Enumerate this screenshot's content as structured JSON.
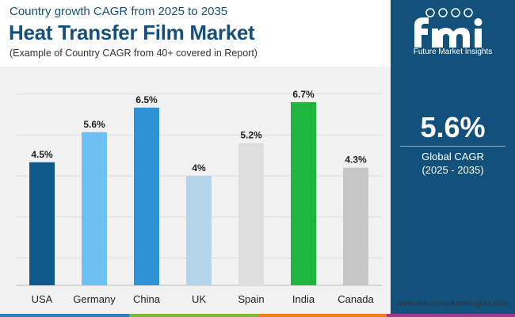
{
  "header": {
    "subtitle_top": "Country growth CAGR from 2025 to 2035",
    "title": "Heat Transfer Film Market",
    "subtitle_bottom": "(Example of Country CAGR from 40+ covered in Report)"
  },
  "sidebar": {
    "logo_text": "Future Market Insights",
    "global_value": "5.6%",
    "global_label": "Global CAGR",
    "global_period": "(2025 - 2035)"
  },
  "footer": {
    "website": "www.futuremarketinsights.com"
  },
  "colors": {
    "sidebar": "#12517c",
    "title": "#16507a",
    "chart_bg": "#f2f2f2",
    "strip": [
      "#2b7fc0",
      "#7ab73a",
      "#f07f22",
      "#9b3d8f"
    ]
  },
  "chart_data": {
    "type": "bar",
    "categories": [
      "USA",
      "Germany",
      "China",
      "UK",
      "Spain",
      "India",
      "Canada"
    ],
    "values": [
      4.5,
      5.6,
      6.5,
      4,
      5.2,
      6.7,
      4.3
    ],
    "data_labels": [
      "4.5%",
      "5.6%",
      "6.5%",
      "4%",
      "5.2%",
      "6.7%",
      "4.3%"
    ],
    "colors": [
      "#0f5a8a",
      "#6ec1f2",
      "#2d92d6",
      "#b5d5ea",
      "#dedede",
      "#1db53b",
      "#c6c6c6"
    ],
    "title": "",
    "xlabel": "",
    "ylabel": "",
    "ylim": [
      0,
      8
    ],
    "grid": true
  }
}
